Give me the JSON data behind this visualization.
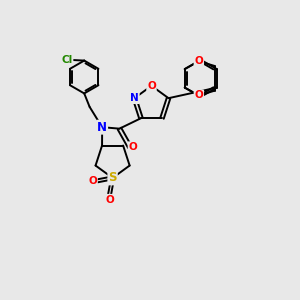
{
  "background_color": "#e8e8e8",
  "figsize": [
    3.0,
    3.0
  ],
  "dpi": 100,
  "atom_colors": {
    "N": "#0000ff",
    "O": "#ff0000",
    "S": "#ccaa00",
    "Cl": "#228800",
    "C": "#000000"
  },
  "bond_color": "#000000",
  "bond_width": 1.4,
  "font_size": 7.5,
  "xlim": [
    0,
    10
  ],
  "ylim": [
    0,
    10
  ]
}
